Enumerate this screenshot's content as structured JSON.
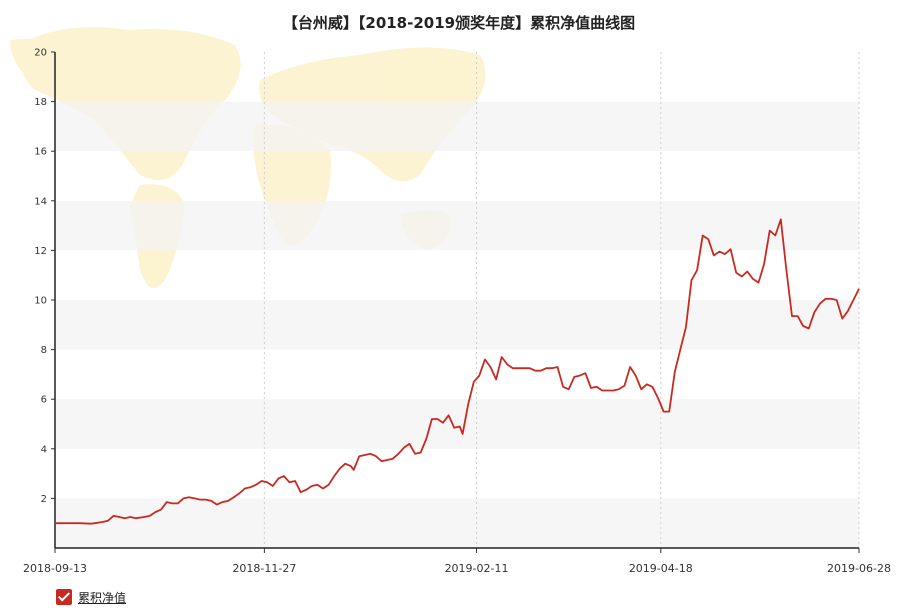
{
  "chart_data": {
    "type": "line",
    "title": "【台州威】【2018-2019颁奖年度】累积净值曲线图",
    "xlabel": "",
    "ylabel": "",
    "ylim": [
      0,
      20
    ],
    "yticks": [
      2,
      4,
      6,
      8,
      10,
      12,
      14,
      16,
      18,
      20
    ],
    "xlim": [
      "2018-09-13",
      "2019-06-28"
    ],
    "xticks": [
      "2018-09-13",
      "2018-11-27",
      "2019-02-11",
      "2019-04-18",
      "2019-06-28"
    ],
    "grid": true,
    "legend_position": "bottom-left",
    "line_color": "#c82a21",
    "series": [
      {
        "name": "累积净值",
        "points": [
          [
            "2018-09-13",
            1.0
          ],
          [
            "2018-09-18",
            1.0
          ],
          [
            "2018-09-22",
            1.0
          ],
          [
            "2018-09-26",
            0.98
          ],
          [
            "2018-09-30",
            1.05
          ],
          [
            "2018-10-02",
            1.1
          ],
          [
            "2018-10-04",
            1.3
          ],
          [
            "2018-10-06",
            1.25
          ],
          [
            "2018-10-08",
            1.2
          ],
          [
            "2018-10-10",
            1.25
          ],
          [
            "2018-10-12",
            1.2
          ],
          [
            "2018-10-15",
            1.25
          ],
          [
            "2018-10-17",
            1.3
          ],
          [
            "2018-10-19",
            1.45
          ],
          [
            "2018-10-21",
            1.55
          ],
          [
            "2018-10-23",
            1.85
          ],
          [
            "2018-10-25",
            1.8
          ],
          [
            "2018-10-27",
            1.8
          ],
          [
            "2018-10-29",
            2.0
          ],
          [
            "2018-10-31",
            2.05
          ],
          [
            "2018-11-02",
            2.0
          ],
          [
            "2018-11-04",
            1.95
          ],
          [
            "2018-11-06",
            1.95
          ],
          [
            "2018-11-08",
            1.9
          ],
          [
            "2018-11-10",
            1.75
          ],
          [
            "2018-11-12",
            1.85
          ],
          [
            "2018-11-14",
            1.9
          ],
          [
            "2018-11-16",
            2.05
          ],
          [
            "2018-11-18",
            2.2
          ],
          [
            "2018-11-20",
            2.4
          ],
          [
            "2018-11-22",
            2.45
          ],
          [
            "2018-11-24",
            2.55
          ],
          [
            "2018-11-26",
            2.7
          ],
          [
            "2018-11-28",
            2.65
          ],
          [
            "2018-11-30",
            2.5
          ],
          [
            "2018-12-02",
            2.8
          ],
          [
            "2018-12-04",
            2.9
          ],
          [
            "2018-12-06",
            2.65
          ],
          [
            "2018-12-08",
            2.7
          ],
          [
            "2018-12-10",
            2.25
          ],
          [
            "2018-12-12",
            2.35
          ],
          [
            "2018-12-14",
            2.5
          ],
          [
            "2018-12-16",
            2.55
          ],
          [
            "2018-12-18",
            2.4
          ],
          [
            "2018-12-20",
            2.55
          ],
          [
            "2018-12-22",
            2.9
          ],
          [
            "2018-12-24",
            3.2
          ],
          [
            "2018-12-26",
            3.4
          ],
          [
            "2018-12-28",
            3.3
          ],
          [
            "2018-12-29",
            3.15
          ],
          [
            "2018-12-31",
            3.7
          ],
          [
            "2019-01-02",
            3.75
          ],
          [
            "2019-01-04",
            3.8
          ],
          [
            "2019-01-06",
            3.7
          ],
          [
            "2019-01-08",
            3.5
          ],
          [
            "2019-01-10",
            3.55
          ],
          [
            "2019-01-12",
            3.6
          ],
          [
            "2019-01-14",
            3.8
          ],
          [
            "2019-01-16",
            4.05
          ],
          [
            "2019-01-18",
            4.2
          ],
          [
            "2019-01-20",
            3.8
          ],
          [
            "2019-01-22",
            3.85
          ],
          [
            "2019-01-24",
            4.4
          ],
          [
            "2019-01-26",
            5.2
          ],
          [
            "2019-01-28",
            5.2
          ],
          [
            "2019-01-30",
            5.05
          ],
          [
            "2019-02-01",
            5.35
          ],
          [
            "2019-02-03",
            4.85
          ],
          [
            "2019-02-05",
            4.9
          ],
          [
            "2019-02-06",
            4.6
          ],
          [
            "2019-02-08",
            5.8
          ],
          [
            "2019-02-10",
            6.7
          ],
          [
            "2019-02-12",
            6.95
          ],
          [
            "2019-02-14",
            7.6
          ],
          [
            "2019-02-16",
            7.3
          ],
          [
            "2019-02-18",
            6.8
          ],
          [
            "2019-02-20",
            7.7
          ],
          [
            "2019-02-22",
            7.4
          ],
          [
            "2019-02-24",
            7.25
          ],
          [
            "2019-02-26",
            7.25
          ],
          [
            "2019-02-28",
            7.25
          ],
          [
            "2019-03-02",
            7.25
          ],
          [
            "2019-03-04",
            7.15
          ],
          [
            "2019-03-06",
            7.15
          ],
          [
            "2019-03-08",
            7.25
          ],
          [
            "2019-03-10",
            7.25
          ],
          [
            "2019-03-12",
            7.3
          ],
          [
            "2019-03-14",
            6.5
          ],
          [
            "2019-03-16",
            6.4
          ],
          [
            "2019-03-18",
            6.9
          ],
          [
            "2019-03-20",
            6.95
          ],
          [
            "2019-03-22",
            7.05
          ],
          [
            "2019-03-24",
            6.45
          ],
          [
            "2019-03-26",
            6.5
          ],
          [
            "2019-03-28",
            6.35
          ],
          [
            "2019-03-30",
            6.35
          ],
          [
            "2019-04-01",
            6.35
          ],
          [
            "2019-04-03",
            6.4
          ],
          [
            "2019-04-05",
            6.55
          ],
          [
            "2019-04-07",
            7.3
          ],
          [
            "2019-04-09",
            6.95
          ],
          [
            "2019-04-11",
            6.4
          ],
          [
            "2019-04-13",
            6.6
          ],
          [
            "2019-04-15",
            6.5
          ],
          [
            "2019-04-17",
            6.05
          ],
          [
            "2019-04-19",
            5.5
          ],
          [
            "2019-04-21",
            5.5
          ],
          [
            "2019-04-23",
            7.1
          ],
          [
            "2019-04-25",
            8.0
          ],
          [
            "2019-04-27",
            8.9
          ],
          [
            "2019-04-29",
            10.8
          ],
          [
            "2019-05-01",
            11.2
          ],
          [
            "2019-05-03",
            12.6
          ],
          [
            "2019-05-05",
            12.45
          ],
          [
            "2019-05-07",
            11.8
          ],
          [
            "2019-05-09",
            11.95
          ],
          [
            "2019-05-11",
            11.85
          ],
          [
            "2019-05-13",
            12.05
          ],
          [
            "2019-05-15",
            11.1
          ],
          [
            "2019-05-17",
            10.95
          ],
          [
            "2019-05-19",
            11.15
          ],
          [
            "2019-05-21",
            10.85
          ],
          [
            "2019-05-23",
            10.7
          ],
          [
            "2019-05-25",
            11.45
          ],
          [
            "2019-05-27",
            12.8
          ],
          [
            "2019-05-29",
            12.6
          ],
          [
            "2019-05-31",
            13.25
          ],
          [
            "2019-06-02",
            11.2
          ],
          [
            "2019-06-04",
            9.35
          ],
          [
            "2019-06-06",
            9.35
          ],
          [
            "2019-06-08",
            8.95
          ],
          [
            "2019-06-10",
            8.85
          ],
          [
            "2019-06-12",
            9.5
          ],
          [
            "2019-06-14",
            9.85
          ],
          [
            "2019-06-16",
            10.05
          ],
          [
            "2019-06-18",
            10.05
          ],
          [
            "2019-06-20",
            10.0
          ],
          [
            "2019-06-22",
            9.25
          ],
          [
            "2019-06-24",
            9.55
          ],
          [
            "2019-06-26",
            10.0
          ],
          [
            "2019-06-28",
            10.45
          ]
        ]
      }
    ]
  }
}
